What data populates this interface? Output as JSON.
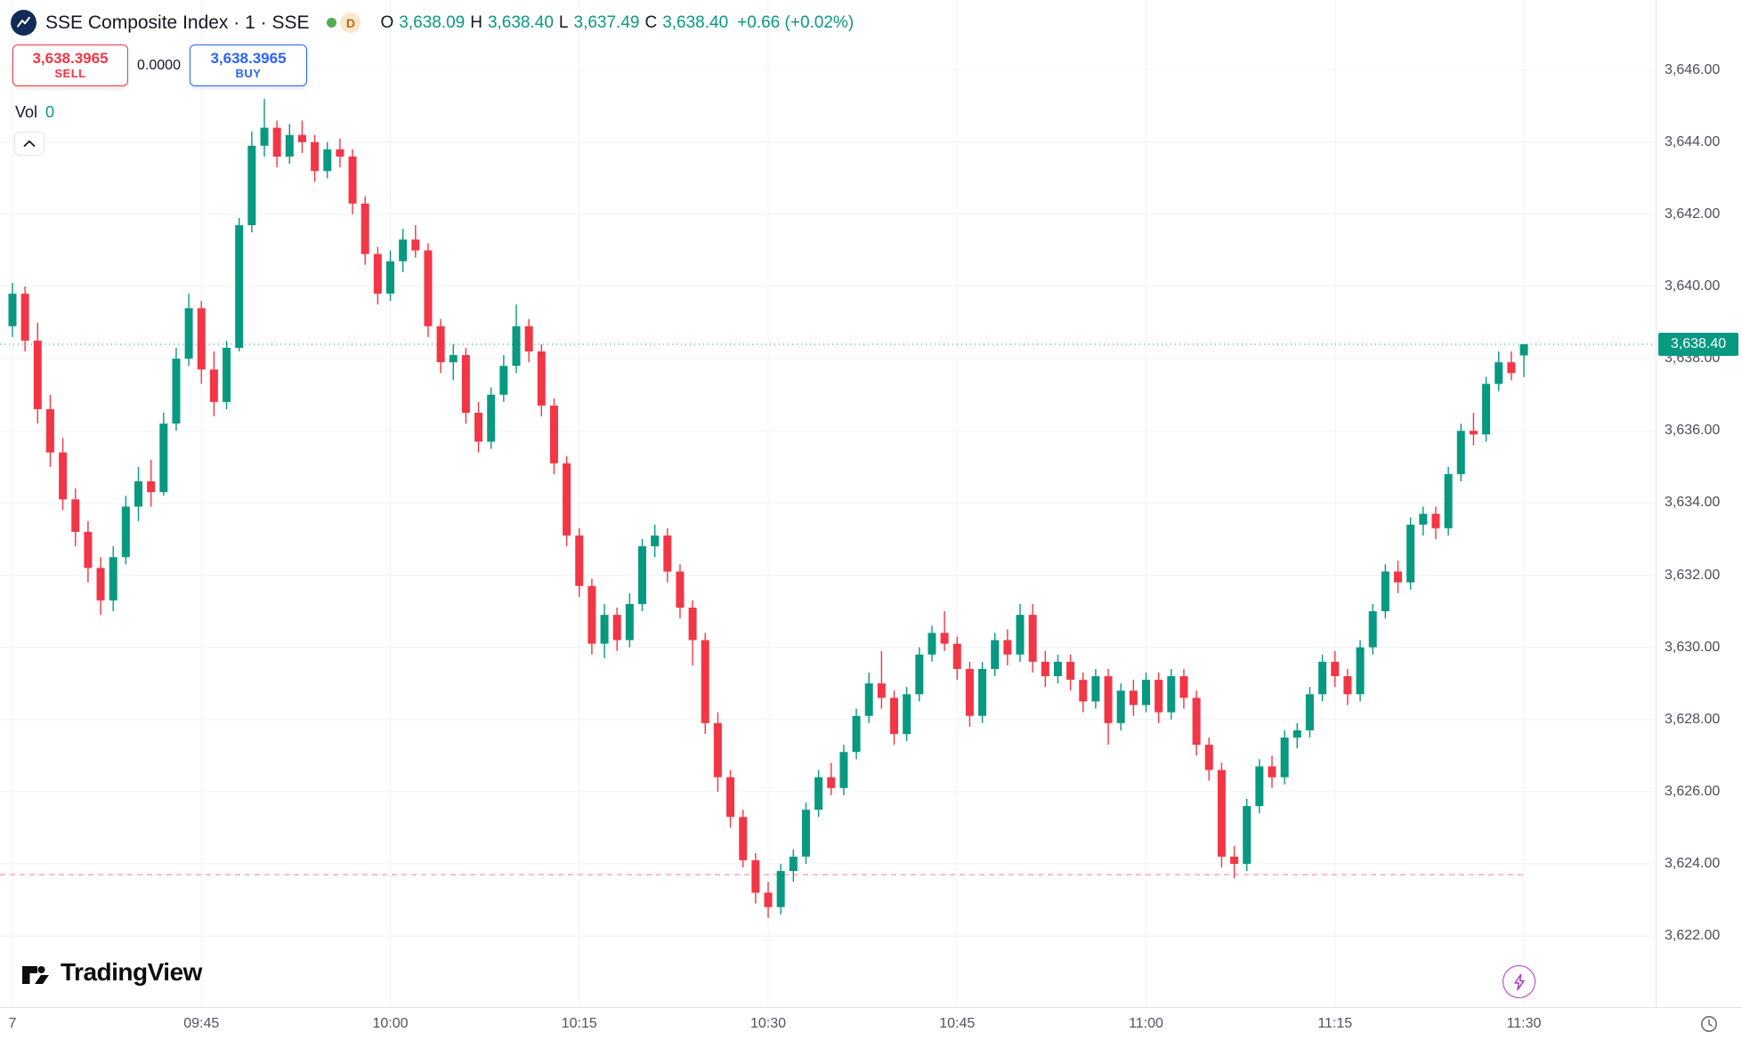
{
  "colors": {
    "up": "#089981",
    "down": "#f23645",
    "buy_blue": "#2962ff",
    "sell_red": "#f23645",
    "badge_bg": "#089981",
    "status_dot_green": "#4caf50",
    "delayed_badge_orange": "#c06a10",
    "flash_purple": "#ab3bbf",
    "grid": "#f0f2f5",
    "axis_text": "#4a4e59"
  },
  "header": {
    "title": "SSE Composite Index · 1 · SSE",
    "status_badge": "D",
    "ohlc": {
      "o_label": "O",
      "o_value": "3,638.09",
      "h_label": "H",
      "h_value": "3,638.40",
      "l_label": "L",
      "l_value": "3,637.49",
      "c_label": "C",
      "c_value": "3,638.40",
      "change": "+0.66 (+0.02%)"
    }
  },
  "trade_panel": {
    "sell_price": "3,638.3965",
    "sell_label": "SELL",
    "spread": "0.0000",
    "buy_price": "3,638.3965",
    "buy_label": "BUY"
  },
  "volume": {
    "label": "Vol",
    "value": "0"
  },
  "price_scale": {
    "last_price_label": "3,638.40"
  },
  "axes": {
    "price_ticks": [
      {
        "label": "3,646.00",
        "p": 3646
      },
      {
        "label": "3,644.00",
        "p": 3644
      },
      {
        "label": "3,642.00",
        "p": 3642
      },
      {
        "label": "3,640.00",
        "p": 3640
      },
      {
        "label": "3,638.00",
        "p": 3638
      },
      {
        "label": "3,636.00",
        "p": 3636
      },
      {
        "label": "3,634.00",
        "p": 3634
      },
      {
        "label": "3,632.00",
        "p": 3632
      },
      {
        "label": "3,630.00",
        "p": 3630
      },
      {
        "label": "3,628.00",
        "p": 3628
      },
      {
        "label": "3,626.00",
        "p": 3626
      },
      {
        "label": "3,624.00",
        "p": 3624
      },
      {
        "label": "3,622.00",
        "p": 3622
      }
    ],
    "time_ticks": [
      {
        "label": "7",
        "m": 0
      },
      {
        "label": "09:45",
        "m": 15
      },
      {
        "label": "10:00",
        "m": 30
      },
      {
        "label": "10:15",
        "m": 45
      },
      {
        "label": "10:30",
        "m": 60
      },
      {
        "label": "10:45",
        "m": 75
      },
      {
        "label": "11:00",
        "m": 90
      },
      {
        "label": "11:15",
        "m": 105
      },
      {
        "label": "11:30",
        "m": 120
      }
    ]
  },
  "footer": {
    "brand": "TradingView"
  },
  "chart_data": {
    "type": "candlestick",
    "title": "SSE Composite Index",
    "interval": "1m",
    "start_time": "09:30",
    "end_time": "11:30",
    "ylim": [
      3620.03,
      3647.94
    ],
    "grid": true,
    "up_color": "#089981",
    "down_color": "#f23645",
    "last_price": 3638.4,
    "dashed_line_price": 3623.7,
    "candles": [
      [
        3638.9,
        3640.1,
        3638.6,
        3639.8
      ],
      [
        3639.8,
        3640.0,
        3638.2,
        3638.5
      ],
      [
        3638.5,
        3639.0,
        3636.2,
        3636.6
      ],
      [
        3636.6,
        3637.0,
        3635.0,
        3635.4
      ],
      [
        3635.4,
        3635.8,
        3633.8,
        3634.1
      ],
      [
        3634.1,
        3634.4,
        3632.8,
        3633.2
      ],
      [
        3633.2,
        3633.5,
        3631.8,
        3632.2
      ],
      [
        3632.2,
        3632.5,
        3630.9,
        3631.3
      ],
      [
        3631.3,
        3632.8,
        3631.0,
        3632.5
      ],
      [
        3632.5,
        3634.2,
        3632.3,
        3633.9
      ],
      [
        3633.9,
        3635.0,
        3633.5,
        3634.6
      ],
      [
        3634.6,
        3635.2,
        3633.9,
        3634.3
      ],
      [
        3634.3,
        3636.5,
        3634.2,
        3636.2
      ],
      [
        3636.2,
        3638.3,
        3636.0,
        3638.0
      ],
      [
        3638.0,
        3639.8,
        3637.8,
        3639.4
      ],
      [
        3639.4,
        3639.6,
        3637.3,
        3637.7
      ],
      [
        3637.7,
        3638.2,
        3636.4,
        3636.8
      ],
      [
        3636.8,
        3638.5,
        3636.6,
        3638.3
      ],
      [
        3638.3,
        3641.9,
        3638.2,
        3641.7
      ],
      [
        3641.7,
        3644.3,
        3641.5,
        3643.9
      ],
      [
        3643.9,
        3645.2,
        3643.6,
        3644.4
      ],
      [
        3644.4,
        3644.6,
        3643.3,
        3643.6
      ],
      [
        3643.6,
        3644.5,
        3643.4,
        3644.2
      ],
      [
        3644.2,
        3644.6,
        3643.7,
        3644.0
      ],
      [
        3644.0,
        3644.2,
        3642.9,
        3643.2
      ],
      [
        3643.2,
        3644.0,
        3643.0,
        3643.8
      ],
      [
        3643.8,
        3644.1,
        3643.3,
        3643.6
      ],
      [
        3643.6,
        3643.8,
        3642.0,
        3642.3
      ],
      [
        3642.3,
        3642.5,
        3640.6,
        3640.9
      ],
      [
        3640.9,
        3641.1,
        3639.5,
        3639.8
      ],
      [
        3639.8,
        3641.0,
        3639.6,
        3640.7
      ],
      [
        3640.7,
        3641.6,
        3640.4,
        3641.3
      ],
      [
        3641.3,
        3641.7,
        3640.8,
        3641.0
      ],
      [
        3641.0,
        3641.2,
        3638.6,
        3638.9
      ],
      [
        3638.9,
        3639.1,
        3637.6,
        3637.9
      ],
      [
        3637.9,
        3638.4,
        3637.4,
        3638.1
      ],
      [
        3638.1,
        3638.3,
        3636.2,
        3636.5
      ],
      [
        3636.5,
        3636.8,
        3635.4,
        3635.7
      ],
      [
        3635.7,
        3637.2,
        3635.5,
        3637.0
      ],
      [
        3637.0,
        3638.1,
        3636.8,
        3637.8
      ],
      [
        3637.8,
        3639.5,
        3637.6,
        3638.9
      ],
      [
        3638.9,
        3639.1,
        3637.9,
        3638.2
      ],
      [
        3638.2,
        3638.4,
        3636.4,
        3636.7
      ],
      [
        3636.7,
        3636.9,
        3634.8,
        3635.1
      ],
      [
        3635.1,
        3635.3,
        3632.8,
        3633.1
      ],
      [
        3633.1,
        3633.3,
        3631.4,
        3631.7
      ],
      [
        3631.7,
        3631.9,
        3629.8,
        3630.1
      ],
      [
        3630.1,
        3631.2,
        3629.7,
        3630.9
      ],
      [
        3630.9,
        3631.1,
        3629.9,
        3630.2
      ],
      [
        3630.2,
        3631.5,
        3630.0,
        3631.2
      ],
      [
        3631.2,
        3633.0,
        3631.0,
        3632.8
      ],
      [
        3632.8,
        3633.4,
        3632.5,
        3633.1
      ],
      [
        3633.1,
        3633.3,
        3631.8,
        3632.1
      ],
      [
        3632.1,
        3632.3,
        3630.8,
        3631.1
      ],
      [
        3631.1,
        3631.3,
        3629.5,
        3630.2
      ],
      [
        3630.2,
        3630.4,
        3627.6,
        3627.9
      ],
      [
        3627.9,
        3628.2,
        3626.0,
        3626.4
      ],
      [
        3626.4,
        3626.6,
        3625.0,
        3625.3
      ],
      [
        3625.3,
        3625.5,
        3623.9,
        3624.1
      ],
      [
        3624.1,
        3624.3,
        3622.9,
        3623.2
      ],
      [
        3623.2,
        3623.5,
        3622.5,
        3622.8
      ],
      [
        3622.8,
        3624.0,
        3622.6,
        3623.8
      ],
      [
        3623.8,
        3624.4,
        3623.5,
        3624.2
      ],
      [
        3624.2,
        3625.7,
        3624.0,
        3625.5
      ],
      [
        3625.5,
        3626.6,
        3625.3,
        3626.4
      ],
      [
        3626.4,
        3626.8,
        3625.9,
        3626.1
      ],
      [
        3626.1,
        3627.3,
        3625.9,
        3627.1
      ],
      [
        3627.1,
        3628.3,
        3626.9,
        3628.1
      ],
      [
        3628.1,
        3629.3,
        3627.9,
        3629.0
      ],
      [
        3629.0,
        3629.9,
        3628.3,
        3628.6
      ],
      [
        3628.6,
        3628.8,
        3627.3,
        3627.6
      ],
      [
        3627.6,
        3628.9,
        3627.4,
        3628.7
      ],
      [
        3628.7,
        3630.0,
        3628.5,
        3629.8
      ],
      [
        3629.8,
        3630.6,
        3629.6,
        3630.4
      ],
      [
        3630.4,
        3631.0,
        3629.9,
        3630.1
      ],
      [
        3630.1,
        3630.3,
        3629.1,
        3629.4
      ],
      [
        3629.4,
        3629.6,
        3627.8,
        3628.1
      ],
      [
        3628.1,
        3629.6,
        3627.9,
        3629.4
      ],
      [
        3629.4,
        3630.4,
        3629.2,
        3630.2
      ],
      [
        3630.2,
        3630.5,
        3629.5,
        3629.8
      ],
      [
        3629.8,
        3631.2,
        3629.6,
        3630.9
      ],
      [
        3630.9,
        3631.2,
        3629.3,
        3629.6
      ],
      [
        3629.6,
        3629.9,
        3628.9,
        3629.2
      ],
      [
        3629.2,
        3629.8,
        3629.0,
        3629.6
      ],
      [
        3629.6,
        3629.8,
        3628.8,
        3629.1
      ],
      [
        3629.1,
        3629.3,
        3628.2,
        3628.5
      ],
      [
        3628.5,
        3629.4,
        3628.3,
        3629.2
      ],
      [
        3629.2,
        3629.4,
        3627.3,
        3627.9
      ],
      [
        3627.9,
        3629.0,
        3627.7,
        3628.8
      ],
      [
        3628.8,
        3629.1,
        3628.1,
        3628.4
      ],
      [
        3628.4,
        3629.3,
        3628.2,
        3629.1
      ],
      [
        3629.1,
        3629.3,
        3627.9,
        3628.2
      ],
      [
        3628.2,
        3629.4,
        3628.0,
        3629.2
      ],
      [
        3629.2,
        3629.4,
        3628.3,
        3628.6
      ],
      [
        3628.6,
        3628.8,
        3627.0,
        3627.3
      ],
      [
        3627.3,
        3627.5,
        3626.3,
        3626.6
      ],
      [
        3626.6,
        3626.8,
        3623.9,
        3624.2
      ],
      [
        3624.2,
        3624.5,
        3623.6,
        3624.0
      ],
      [
        3624.0,
        3625.8,
        3623.8,
        3625.6
      ],
      [
        3625.6,
        3626.9,
        3625.4,
        3626.7
      ],
      [
        3626.7,
        3627.0,
        3626.1,
        3626.4
      ],
      [
        3626.4,
        3627.7,
        3626.2,
        3627.5
      ],
      [
        3627.5,
        3627.9,
        3627.2,
        3627.7
      ],
      [
        3627.7,
        3628.9,
        3627.5,
        3628.7
      ],
      [
        3628.7,
        3629.8,
        3628.5,
        3629.6
      ],
      [
        3629.6,
        3629.9,
        3628.9,
        3629.2
      ],
      [
        3629.2,
        3629.4,
        3628.4,
        3628.7
      ],
      [
        3628.7,
        3630.2,
        3628.5,
        3630.0
      ],
      [
        3630.0,
        3631.2,
        3629.8,
        3631.0
      ],
      [
        3631.0,
        3632.3,
        3630.8,
        3632.1
      ],
      [
        3632.1,
        3632.4,
        3631.5,
        3631.8
      ],
      [
        3631.8,
        3633.6,
        3631.6,
        3633.4
      ],
      [
        3633.4,
        3633.9,
        3633.1,
        3633.7
      ],
      [
        3633.7,
        3633.9,
        3633.0,
        3633.3
      ],
      [
        3633.3,
        3635.0,
        3633.1,
        3634.8
      ],
      [
        3634.8,
        3636.2,
        3634.6,
        3636.0
      ],
      [
        3636.0,
        3636.5,
        3635.6,
        3635.9
      ],
      [
        3635.9,
        3637.5,
        3635.7,
        3637.3
      ],
      [
        3637.3,
        3638.2,
        3637.1,
        3637.9
      ],
      [
        3637.9,
        3638.2,
        3637.4,
        3637.6
      ],
      [
        3638.09,
        3638.4,
        3637.49,
        3638.4
      ]
    ]
  }
}
